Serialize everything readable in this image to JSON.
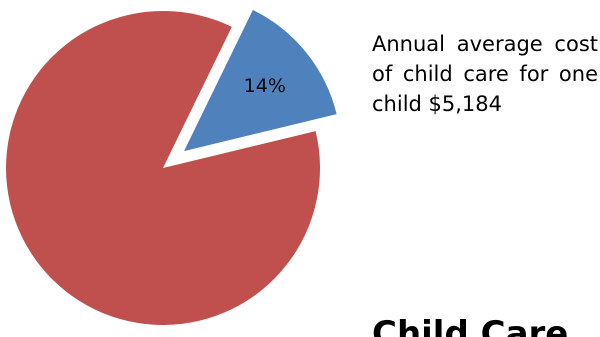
{
  "chart_data": {
    "type": "pie",
    "slices": [
      {
        "label": "",
        "value": 14,
        "data_label": "14%",
        "color": "#4f81bd",
        "exploded": true
      },
      {
        "label": "",
        "value": 86,
        "data_label": "",
        "color": "#c0504d",
        "exploded": false
      }
    ],
    "annotation": "Annual average cost of child care for one child $5,184"
  },
  "heading": "Child Care"
}
